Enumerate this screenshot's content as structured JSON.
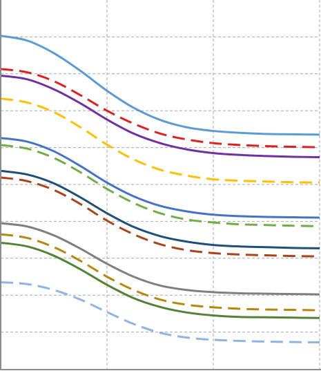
{
  "chart_data": {
    "type": "line",
    "x": [
      0,
      0.25,
      0.5,
      0.75,
      1,
      1.25,
      1.5,
      1.75,
      2,
      2.25,
      2.5,
      2.75,
      3
    ],
    "xlim": [
      0,
      3
    ],
    "ylim": [
      0,
      10
    ],
    "grid": true,
    "gridline_style": "dashed",
    "x_tick_labels_visible": false,
    "y_tick_labels_visible": false,
    "legend": "none",
    "series": [
      {
        "color": "#5b9bd5",
        "dash": "solid",
        "values": [
          9.03,
          8.9,
          8.56,
          8.08,
          7.54,
          7.08,
          6.75,
          6.55,
          6.45,
          6.4,
          6.37,
          6.36,
          6.35
        ]
      },
      {
        "color": "#e02020",
        "dash": "dashed",
        "values": [
          8.13,
          8.04,
          7.8,
          7.42,
          7.0,
          6.65,
          6.38,
          6.22,
          6.12,
          6.07,
          6.04,
          6.02,
          6.01
        ]
      },
      {
        "color": "#7030a0",
        "dash": "solid",
        "values": [
          7.95,
          7.85,
          7.58,
          7.2,
          6.76,
          6.38,
          6.12,
          5.95,
          5.85,
          5.8,
          5.77,
          5.75,
          5.74
        ]
      },
      {
        "color": "#ffc000",
        "dash": "dashed",
        "values": [
          7.33,
          7.22,
          6.96,
          6.55,
          6.08,
          5.68,
          5.4,
          5.24,
          5.14,
          5.1,
          5.08,
          5.06,
          5.05
        ]
      },
      {
        "color": "#4472c4",
        "dash": "solid",
        "values": [
          6.26,
          6.16,
          5.9,
          5.5,
          5.05,
          4.68,
          4.42,
          4.27,
          4.18,
          4.14,
          4.12,
          4.11,
          4.1
        ]
      },
      {
        "color": "#70ad47",
        "dash": "dashed",
        "values": [
          6.07,
          5.97,
          5.72,
          5.33,
          4.88,
          4.5,
          4.22,
          4.05,
          3.97,
          3.92,
          3.9,
          3.88,
          3.87
        ]
      },
      {
        "color": "#1f4e79",
        "dash": "solid",
        "values": [
          5.37,
          5.27,
          5.03,
          4.65,
          4.22,
          3.85,
          3.6,
          3.45,
          3.36,
          3.32,
          3.3,
          3.28,
          3.27
        ]
      },
      {
        "color": "#a9441a",
        "dash": "dashed",
        "values": [
          5.19,
          5.09,
          4.85,
          4.47,
          4.02,
          3.65,
          3.38,
          3.22,
          3.14,
          3.1,
          3.08,
          3.06,
          3.05
        ]
      },
      {
        "color": "#7f7f7f",
        "dash": "solid",
        "values": [
          3.95,
          3.86,
          3.62,
          3.26,
          2.85,
          2.5,
          2.26,
          2.14,
          2.08,
          2.05,
          2.04,
          2.03,
          2.02
        ]
      },
      {
        "color": "#b8860b",
        "dash": "dashed",
        "values": [
          3.65,
          3.55,
          3.3,
          2.93,
          2.5,
          2.14,
          1.88,
          1.74,
          1.67,
          1.63,
          1.61,
          1.6,
          1.59
        ]
      },
      {
        "color": "#548235",
        "dash": "solid",
        "values": [
          3.42,
          3.32,
          3.07,
          2.7,
          2.28,
          1.92,
          1.68,
          1.53,
          1.45,
          1.41,
          1.4,
          1.39,
          1.38
        ]
      },
      {
        "color": "#8db4e2",
        "dash": "dashed",
        "values": [
          2.35,
          2.3,
          2.14,
          1.88,
          1.54,
          1.22,
          0.98,
          0.85,
          0.79,
          0.76,
          0.74,
          0.73,
          0.72
        ]
      }
    ]
  }
}
